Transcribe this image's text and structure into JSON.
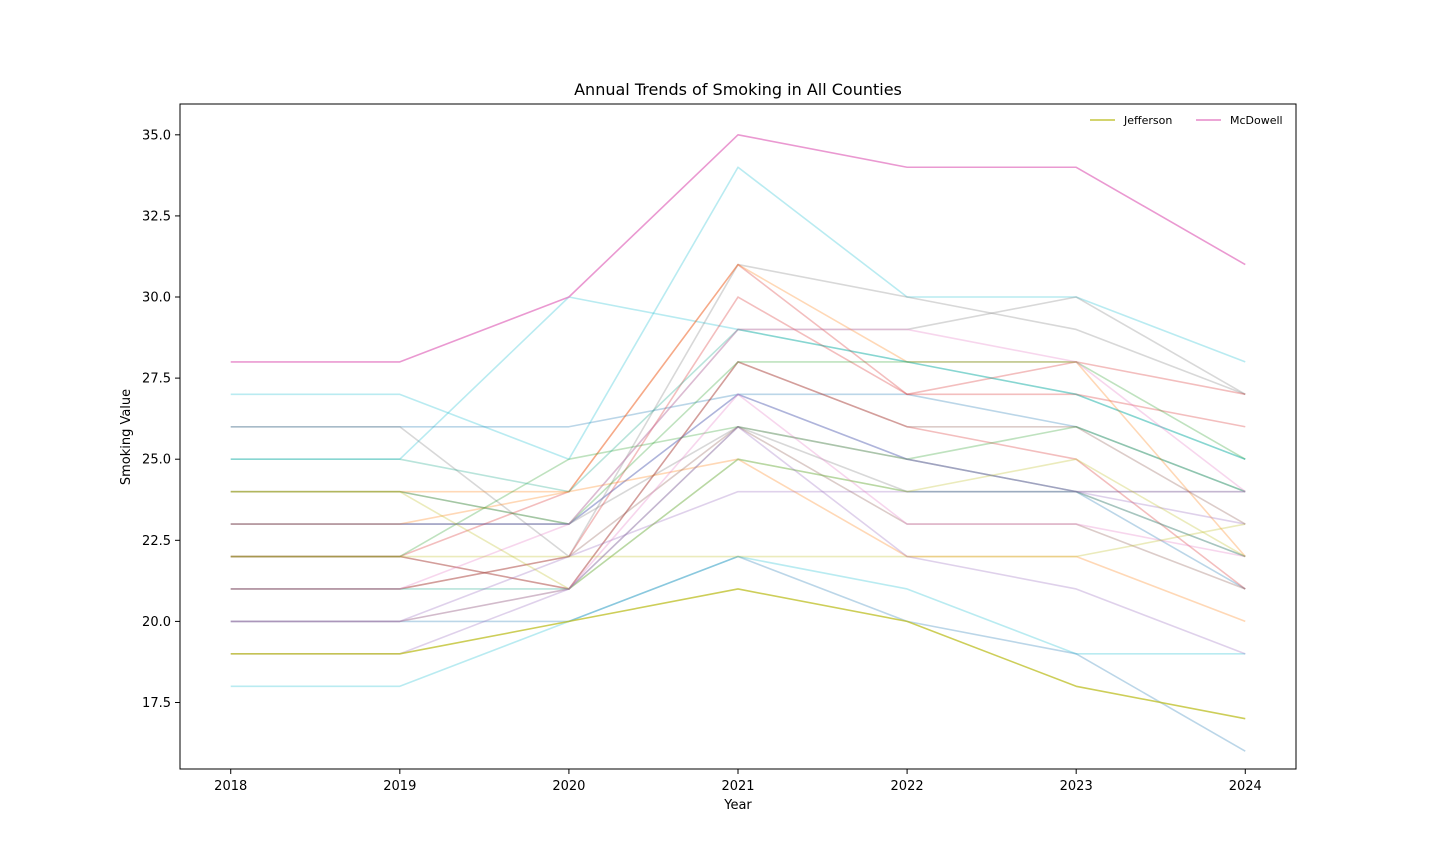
{
  "chart_data": {
    "type": "line",
    "title": "Annual Trends of Smoking in All Counties",
    "xlabel": "Year",
    "ylabel": "Smoking Value",
    "x": [
      2018,
      2019,
      2020,
      2021,
      2022,
      2023,
      2024
    ],
    "x_tick_labels": [
      "2018",
      "2019",
      "2020",
      "2021",
      "2022",
      "2023",
      "2024"
    ],
    "y_ticks": [
      17.5,
      20.0,
      22.5,
      25.0,
      27.5,
      30.0,
      32.5,
      35.0
    ],
    "y_tick_labels": [
      "17.5",
      "20.0",
      "22.5",
      "25.0",
      "27.5",
      "30.0",
      "32.5",
      "35.0"
    ],
    "ylim": [
      15.45,
      35.95
    ],
    "xlim": [
      2017.7,
      2024.3
    ],
    "grid": false,
    "legend_position": "top-right",
    "series": [
      {
        "name": "Jefferson",
        "values": [
          19,
          19,
          20,
          21,
          20,
          18,
          17
        ],
        "color": "#bcbd22",
        "highlight": true
      },
      {
        "name": "McDowell",
        "values": [
          28,
          28,
          30,
          35,
          34,
          34,
          31
        ],
        "color": "#e377c2",
        "highlight": true
      },
      {
        "values": [
          27,
          27,
          25,
          34,
          30,
          30,
          28
        ],
        "color": "#17becf",
        "highlight": false
      },
      {
        "values": [
          18,
          18,
          20,
          22,
          21,
          19,
          19
        ],
        "color": "#17becf",
        "highlight": false
      },
      {
        "values": [
          25,
          25,
          30,
          29,
          28,
          27,
          25
        ],
        "color": "#17becf",
        "highlight": false
      },
      {
        "values": [
          26,
          26,
          26,
          27,
          27,
          26,
          24
        ],
        "color": "#1f77b4",
        "highlight": false
      },
      {
        "values": [
          20,
          20,
          20,
          22,
          20,
          19,
          16
        ],
        "color": "#1f77b4",
        "highlight": false
      },
      {
        "values": [
          23,
          23,
          23,
          27,
          25,
          24,
          21
        ],
        "color": "#1f77b4",
        "highlight": false
      },
      {
        "values": [
          26,
          26,
          22,
          31,
          30,
          29,
          27
        ],
        "color": "#7f7f7f",
        "highlight": false
      },
      {
        "values": [
          24,
          24,
          23,
          29,
          29,
          30,
          27
        ],
        "color": "#7f7f7f",
        "highlight": false
      },
      {
        "values": [
          23,
          23,
          23,
          26,
          24,
          24,
          24
        ],
        "color": "#7f7f7f",
        "highlight": false
      },
      {
        "values": [
          22,
          22,
          24,
          31,
          27,
          28,
          27
        ],
        "color": "#d62728",
        "highlight": false
      },
      {
        "values": [
          21,
          21,
          22,
          30,
          27,
          27,
          26
        ],
        "color": "#d62728",
        "highlight": false
      },
      {
        "values": [
          22,
          22,
          21,
          28,
          26,
          25,
          21
        ],
        "color": "#d62728",
        "highlight": false
      },
      {
        "values": [
          23,
          23,
          24,
          31,
          28,
          28,
          22
        ],
        "color": "#ff7f0e",
        "highlight": false
      },
      {
        "values": [
          24,
          24,
          24,
          25,
          22,
          22,
          20
        ],
        "color": "#ff7f0e",
        "highlight": false
      },
      {
        "values": [
          22,
          22,
          21,
          28,
          26,
          26,
          23
        ],
        "color": "#8c564b",
        "highlight": false
      },
      {
        "values": [
          21,
          21,
          22,
          26,
          23,
          23,
          21
        ],
        "color": "#8c564b",
        "highlight": false
      },
      {
        "values": [
          24,
          24,
          23,
          28,
          28,
          28,
          25
        ],
        "color": "#2ca02c",
        "highlight": false
      },
      {
        "values": [
          22,
          22,
          25,
          26,
          25,
          26,
          24
        ],
        "color": "#2ca02c",
        "highlight": false
      },
      {
        "values": [
          25,
          25,
          24,
          29,
          28,
          27,
          25
        ],
        "color": "#17a589",
        "highlight": false
      },
      {
        "values": [
          21,
          21,
          21,
          25,
          24,
          24,
          22
        ],
        "color": "#17a589",
        "highlight": false
      },
      {
        "values": [
          23,
          23,
          23,
          27,
          25,
          24,
          23
        ],
        "color": "#9467bd",
        "highlight": false
      },
      {
        "values": [
          20,
          20,
          22,
          24,
          24,
          24,
          24
        ],
        "color": "#9467bd",
        "highlight": false
      },
      {
        "values": [
          21,
          21,
          23,
          29,
          29,
          28,
          24
        ],
        "color": "#e377c2",
        "highlight": false
      },
      {
        "values": [
          20,
          20,
          21,
          27,
          23,
          23,
          22
        ],
        "color": "#e377c2",
        "highlight": false
      },
      {
        "values": [
          22,
          22,
          22,
          22,
          22,
          22,
          23
        ],
        "color": "#bcbd22",
        "highlight": false
      },
      {
        "values": [
          24,
          24,
          21,
          25,
          24,
          25,
          22
        ],
        "color": "#bcbd22",
        "highlight": false
      },
      {
        "values": [
          20,
          20,
          21,
          26,
          25,
          24,
          22
        ],
        "color": "#7f7f7f",
        "highlight": false
      },
      {
        "values": [
          19,
          19,
          21,
          26,
          22,
          21,
          19
        ],
        "color": "#9467bd",
        "highlight": false
      }
    ]
  }
}
